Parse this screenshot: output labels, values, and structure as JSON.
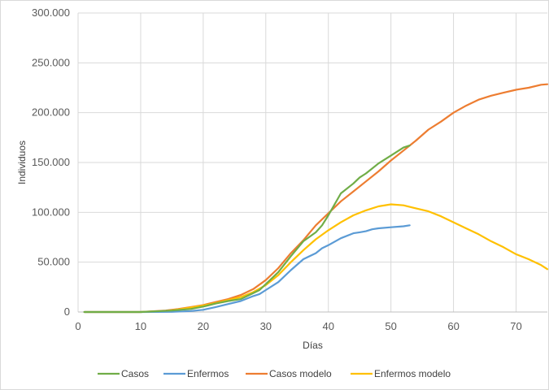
{
  "chart_data": {
    "type": "line",
    "title": "",
    "xlabel": "Días",
    "ylabel": "Individuos",
    "xlim": [
      0,
      75
    ],
    "ylim": [
      0,
      300000
    ],
    "x_ticks": [
      0,
      10,
      20,
      30,
      40,
      50,
      60,
      70
    ],
    "x_tick_labels": [
      "0",
      "10",
      "20",
      "30",
      "40",
      "50",
      "60",
      "70"
    ],
    "y_ticks": [
      0,
      50000,
      100000,
      150000,
      200000,
      250000,
      300000
    ],
    "y_tick_labels": [
      "0",
      "50.000",
      "100.000",
      "150.000",
      "200.000",
      "250.000",
      "300.000"
    ],
    "grid": true,
    "legend_position": "bottom",
    "series": [
      {
        "name": "Casos",
        "color": "#70ad47",
        "x": [
          1,
          10,
          15,
          18,
          20,
          22,
          24,
          26,
          28,
          29,
          30,
          32,
          34,
          36,
          38,
          39,
          40,
          42,
          44,
          45,
          46,
          47,
          48,
          50,
          52,
          53
        ],
        "y": [
          0,
          0,
          1500,
          3000,
          5500,
          8500,
          11000,
          13000,
          19000,
          22000,
          28000,
          40000,
          56000,
          71000,
          80000,
          87000,
          97000,
          119000,
          129000,
          135000,
          139000,
          144000,
          149000,
          157000,
          165000,
          167000
        ]
      },
      {
        "name": "Enfermos",
        "color": "#5b9bd5",
        "x": [
          1,
          10,
          15,
          18,
          20,
          22,
          24,
          26,
          28,
          29,
          30,
          32,
          34,
          36,
          38,
          39,
          40,
          42,
          44,
          45,
          46,
          47,
          48,
          50,
          52,
          53
        ],
        "y": [
          0,
          0,
          200,
          1000,
          2200,
          5000,
          8000,
          11000,
          16000,
          18000,
          22000,
          30000,
          42000,
          53000,
          59000,
          64000,
          67000,
          74000,
          79000,
          80000,
          81000,
          83000,
          84000,
          85000,
          86000,
          87000
        ]
      },
      {
        "name": "Casos modelo",
        "color": "#ed7d31",
        "x": [
          1,
          10,
          14,
          16,
          18,
          20,
          22,
          24,
          26,
          28,
          30,
          32,
          34,
          36,
          38,
          40,
          42,
          44,
          46,
          48,
          50,
          52,
          54,
          56,
          58,
          60,
          62,
          64,
          66,
          68,
          70,
          72,
          74,
          75
        ],
        "y": [
          0,
          0,
          1500,
          3000,
          5000,
          7000,
          10000,
          13000,
          17000,
          23000,
          32000,
          44000,
          59000,
          72000,
          87000,
          99000,
          111000,
          121000,
          131000,
          141000,
          152000,
          162000,
          172000,
          183000,
          191000,
          200000,
          207000,
          213000,
          217000,
          220000,
          223000,
          225000,
          228000,
          228500
        ]
      },
      {
        "name": "Enfermos modelo",
        "color": "#ffc000",
        "x": [
          1,
          10,
          14,
          16,
          18,
          20,
          22,
          24,
          26,
          28,
          30,
          32,
          34,
          36,
          38,
          40,
          42,
          44,
          46,
          48,
          50,
          52,
          54,
          56,
          58,
          60,
          62,
          64,
          66,
          68,
          70,
          72,
          74,
          75
        ],
        "y": [
          0,
          0,
          1000,
          2500,
          4500,
          6500,
          9000,
          12000,
          15000,
          20000,
          27000,
          37000,
          50000,
          62000,
          73000,
          82000,
          90000,
          97000,
          102000,
          106000,
          108000,
          107000,
          104000,
          101000,
          96000,
          90000,
          84000,
          78000,
          71000,
          65000,
          58000,
          53000,
          47000,
          43000
        ]
      }
    ]
  }
}
